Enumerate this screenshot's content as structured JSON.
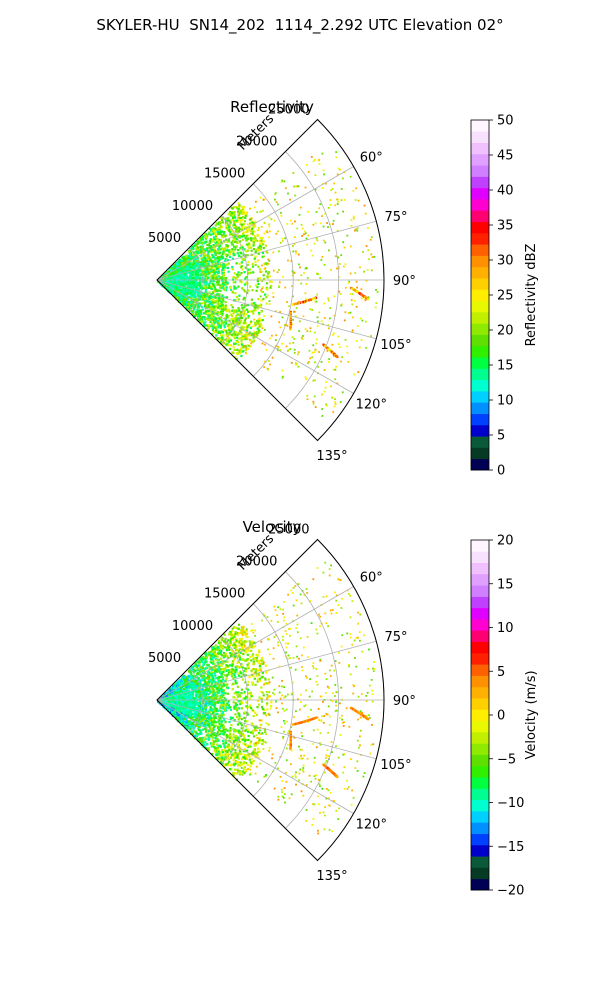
{
  "suptitle": "SKYLER-HU  SN14_202  1114_2.292 UTC Elevation 02°",
  "chart_data": [
    {
      "type": "polar-sector",
      "title": "Reflectivity",
      "field": "reflectivity",
      "r_label": "Meters",
      "r_ticks": [
        5000,
        10000,
        15000,
        20000,
        25000
      ],
      "r_range": [
        0,
        25000
      ],
      "theta_range_deg": [
        45,
        135
      ],
      "theta_ticks_deg": [
        60,
        75,
        90,
        105,
        120,
        135
      ],
      "theta_tick_labels": [
        "60°",
        "75°",
        "90°",
        "105°",
        "120°",
        "135°"
      ],
      "grid": true,
      "colorbar": {
        "label": "Reflectivity dBZ",
        "range": [
          0,
          50
        ],
        "ticks": [
          0,
          5,
          10,
          15,
          20,
          25,
          30,
          35,
          40,
          45,
          50
        ],
        "colors": [
          "#000055",
          "#063a25",
          "#0a5a3a",
          "#0000cc",
          "#0040ff",
          "#0090ff",
          "#00d0ff",
          "#00ffd0",
          "#00ff90",
          "#00ff40",
          "#30f000",
          "#60e000",
          "#90ea00",
          "#c0f000",
          "#e8f800",
          "#ffee00",
          "#ffd000",
          "#ffb000",
          "#ff9000",
          "#ff6000",
          "#ff2000",
          "#ff0000",
          "#ff0070",
          "#ff00d0",
          "#e000ff",
          "#c040ff",
          "#d080ff",
          "#e0a0ff",
          "#f0c0ff",
          "#f8e0ff",
          "#fff4ff"
        ]
      }
    },
    {
      "type": "polar-sector",
      "title": "Velocity",
      "field": "velocity",
      "r_label": "Meters",
      "r_ticks": [
        5000,
        10000,
        15000,
        20000,
        25000
      ],
      "r_range": [
        0,
        25000
      ],
      "theta_range_deg": [
        45,
        135
      ],
      "theta_ticks_deg": [
        60,
        75,
        90,
        105,
        120,
        135
      ],
      "theta_tick_labels": [
        "60°",
        "75°",
        "90°",
        "105°",
        "120°",
        "135°"
      ],
      "grid": true,
      "colorbar": {
        "label": "Velocity (m/s)",
        "range": [
          -20,
          20
        ],
        "ticks": [
          -20,
          -15,
          -10,
          -5,
          0,
          5,
          10,
          15,
          20
        ],
        "colors": [
          "#000055",
          "#063a25",
          "#0a5a3a",
          "#0000cc",
          "#0040ff",
          "#0090ff",
          "#00d0ff",
          "#00ffd0",
          "#00ff90",
          "#00ff40",
          "#30f000",
          "#60e000",
          "#90ea00",
          "#c0f000",
          "#e8f800",
          "#ffee00",
          "#ffd000",
          "#ffb000",
          "#ff9000",
          "#ff6000",
          "#ff2000",
          "#ff0000",
          "#ff0070",
          "#ff00d0",
          "#e000ff",
          "#c040ff",
          "#d080ff",
          "#e0a0ff",
          "#f0c0ff",
          "#f8e0ff",
          "#fff4ff"
        ]
      }
    }
  ]
}
